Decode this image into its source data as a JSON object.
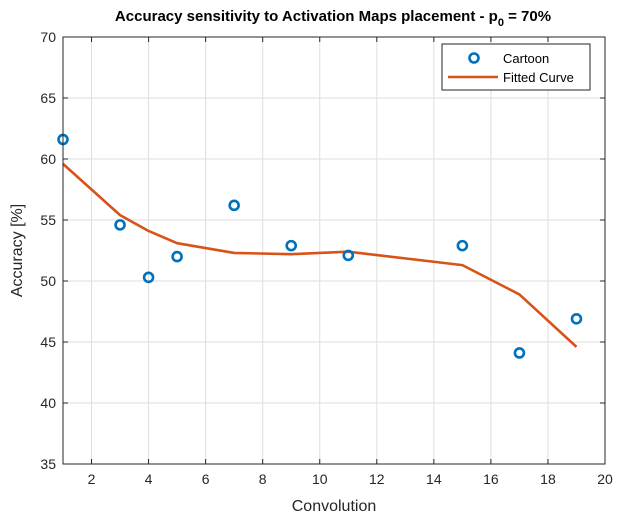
{
  "chart_data": {
    "type": "scatter",
    "title": "Accuracy sensitivity to Activation Maps placement - p",
    "title_subscript": "0",
    "title_suffix": " = 70%",
    "xlabel": "Convolution",
    "ylabel": "Accuracy [%]",
    "xlim": [
      1,
      20
    ],
    "ylim": [
      35,
      70
    ],
    "xticks": [
      2,
      4,
      6,
      8,
      10,
      12,
      14,
      16,
      18,
      20
    ],
    "yticks": [
      35,
      40,
      45,
      50,
      55,
      60,
      65,
      70
    ],
    "grid": true,
    "legend_position": "top-right",
    "series": [
      {
        "name": "Cartoon",
        "kind": "marker",
        "color": "#0072BD",
        "x": [
          1,
          3,
          4,
          5,
          7,
          9,
          11,
          15,
          17,
          19
        ],
        "y": [
          61.6,
          54.6,
          50.3,
          52.0,
          56.2,
          52.9,
          52.1,
          52.9,
          44.1,
          46.9
        ]
      },
      {
        "name": "Fitted Curve",
        "kind": "line",
        "color": "#D95319",
        "x": [
          1,
          3,
          4,
          5,
          7,
          9,
          11,
          15,
          17,
          19
        ],
        "y": [
          59.6,
          55.4,
          54.1,
          53.1,
          52.3,
          52.2,
          52.4,
          51.3,
          48.9,
          44.6
        ]
      }
    ]
  }
}
